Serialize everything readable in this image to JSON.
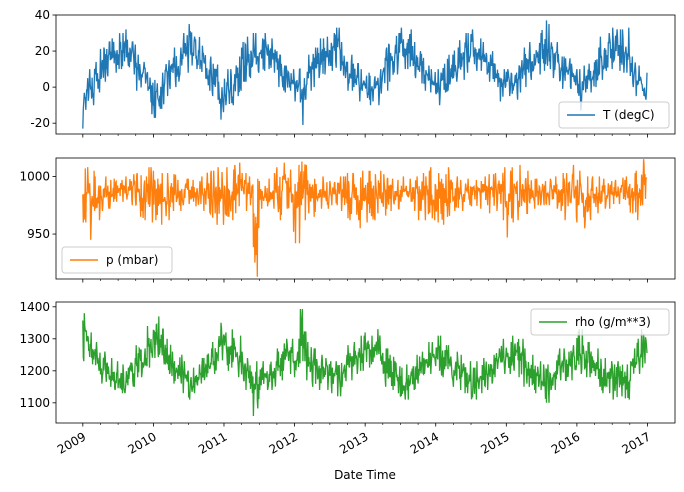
{
  "chart_data": [
    {
      "type": "line",
      "series": [
        {
          "name": "T (degC)",
          "color": "#1f77b4"
        }
      ],
      "x_start": "2009-01",
      "x_end": "2016-12",
      "monthly_low_high": [
        [
          -23,
          5
        ],
        [
          -10,
          10
        ],
        [
          -3,
          14
        ],
        [
          3,
          22
        ],
        [
          6,
          25
        ],
        [
          8,
          27
        ],
        [
          10,
          30
        ],
        [
          11,
          32
        ],
        [
          7,
          25
        ],
        [
          -2,
          18
        ],
        [
          2,
          14
        ],
        [
          -15,
          8
        ],
        [
          -17,
          4
        ],
        [
          -12,
          8
        ],
        [
          -5,
          15
        ],
        [
          0,
          22
        ],
        [
          3,
          22
        ],
        [
          8,
          30
        ],
        [
          12,
          35
        ],
        [
          10,
          28
        ],
        [
          5,
          23
        ],
        [
          -2,
          17
        ],
        [
          -5,
          13
        ],
        [
          -18,
          3
        ],
        [
          -10,
          10
        ],
        [
          -10,
          10
        ],
        [
          -5,
          17
        ],
        [
          3,
          25
        ],
        [
          5,
          28
        ],
        [
          8,
          30
        ],
        [
          9,
          27
        ],
        [
          10,
          30
        ],
        [
          8,
          27
        ],
        [
          0,
          20
        ],
        [
          -3,
          12
        ],
        [
          -2,
          10
        ],
        [
          -8,
          10
        ],
        [
          -21,
          5
        ],
        [
          -2,
          18
        ],
        [
          0,
          22
        ],
        [
          5,
          27
        ],
        [
          7,
          28
        ],
        [
          9,
          30
        ],
        [
          9,
          33
        ],
        [
          5,
          25
        ],
        [
          -2,
          18
        ],
        [
          0,
          13
        ],
        [
          -8,
          10
        ],
        [
          -10,
          8
        ],
        [
          -8,
          6
        ],
        [
          -10,
          10
        ],
        [
          -2,
          22
        ],
        [
          3,
          24
        ],
        [
          7,
          30
        ],
        [
          10,
          33
        ],
        [
          10,
          32
        ],
        [
          5,
          25
        ],
        [
          2,
          20
        ],
        [
          -2,
          12
        ],
        [
          -3,
          10
        ],
        [
          -10,
          10
        ],
        [
          -3,
          13
        ],
        [
          -2,
          18
        ],
        [
          3,
          22
        ],
        [
          4,
          26
        ],
        [
          8,
          30
        ],
        [
          12,
          32
        ],
        [
          9,
          27
        ],
        [
          7,
          25
        ],
        [
          3,
          20
        ],
        [
          0,
          13
        ],
        [
          -8,
          10
        ],
        [
          -5,
          10
        ],
        [
          -7,
          8
        ],
        [
          -3,
          15
        ],
        [
          0,
          22
        ],
        [
          4,
          25
        ],
        [
          7,
          30
        ],
        [
          9,
          37
        ],
        [
          10,
          35
        ],
        [
          5,
          25
        ],
        [
          -1,
          17
        ],
        [
          0,
          16
        ],
        [
          -1,
          13
        ],
        [
          -13,
          10
        ],
        [
          -3,
          12
        ],
        [
          -3,
          13
        ],
        [
          0,
          22
        ],
        [
          4,
          28
        ],
        [
          9,
          30
        ],
        [
          10,
          33
        ],
        [
          9,
          32
        ],
        [
          8,
          33
        ],
        [
          0,
          17
        ],
        [
          -5,
          12
        ],
        [
          -7,
          8
        ]
      ],
      "ylim": [
        -26,
        40
      ],
      "yticks": [
        -20,
        0,
        20,
        40
      ],
      "legend": {
        "label": "T (degC)",
        "placement": "lower right"
      }
    },
    {
      "type": "line",
      "series": [
        {
          "name": "p (mbar)",
          "color": "#ff7f0e"
        }
      ],
      "x_start": "2009-01",
      "x_end": "2016-12",
      "monthly_low_high": [
        [
          960,
          1008
        ],
        [
          945,
          1005
        ],
        [
          962,
          1000
        ],
        [
          970,
          1000
        ],
        [
          972,
          997
        ],
        [
          978,
          998
        ],
        [
          978,
          997
        ],
        [
          980,
          1000
        ],
        [
          975,
          1002
        ],
        [
          965,
          1003
        ],
        [
          962,
          1000
        ],
        [
          960,
          1008
        ],
        [
          962,
          1005
        ],
        [
          958,
          1003
        ],
        [
          962,
          1003
        ],
        [
          970,
          1002
        ],
        [
          970,
          997
        ],
        [
          975,
          998
        ],
        [
          976,
          997
        ],
        [
          974,
          996
        ],
        [
          970,
          1000
        ],
        [
          968,
          1005
        ],
        [
          958,
          1005
        ],
        [
          958,
          1008
        ],
        [
          965,
          1008
        ],
        [
          962,
          1010
        ],
        [
          968,
          1012
        ],
        [
          970,
          1003
        ],
        [
          975,
          1000
        ],
        [
          913,
          998
        ],
        [
          972,
          996
        ],
        [
          974,
          998
        ],
        [
          972,
          1003
        ],
        [
          962,
          1008
        ],
        [
          972,
          1012
        ],
        [
          952,
          1006
        ],
        [
          942,
          1010
        ],
        [
          962,
          1013
        ],
        [
          968,
          1010
        ],
        [
          965,
          998
        ],
        [
          972,
          1000
        ],
        [
          972,
          995
        ],
        [
          975,
          996
        ],
        [
          975,
          1000
        ],
        [
          970,
          1000
        ],
        [
          962,
          1003
        ],
        [
          962,
          1002
        ],
        [
          955,
          1005
        ],
        [
          960,
          1005
        ],
        [
          962,
          1002
        ],
        [
          968,
          1005
        ],
        [
          966,
          1002
        ],
        [
          970,
          998
        ],
        [
          972,
          997
        ],
        [
          978,
          1000
        ],
        [
          978,
          998
        ],
        [
          970,
          1000
        ],
        [
          962,
          1003
        ],
        [
          962,
          1005
        ],
        [
          962,
          1008
        ],
        [
          960,
          1003
        ],
        [
          958,
          1002
        ],
        [
          965,
          1008
        ],
        [
          970,
          1000
        ],
        [
          970,
          997
        ],
        [
          975,
          998
        ],
        [
          974,
          997
        ],
        [
          972,
          996
        ],
        [
          975,
          1000
        ],
        [
          968,
          1002
        ],
        [
          970,
          1003
        ],
        [
          962,
          1008
        ],
        [
          947,
          1005
        ],
        [
          960,
          1008
        ],
        [
          962,
          1010
        ],
        [
          968,
          1005
        ],
        [
          972,
          998
        ],
        [
          975,
          998
        ],
        [
          975,
          996
        ],
        [
          975,
          998
        ],
        [
          972,
          1000
        ],
        [
          970,
          1003
        ],
        [
          962,
          1003
        ],
        [
          965,
          1010
        ],
        [
          960,
          1005
        ],
        [
          955,
          1000
        ],
        [
          962,
          1000
        ],
        [
          968,
          1000
        ],
        [
          972,
          998
        ],
        [
          972,
          996
        ],
        [
          976,
          997
        ],
        [
          976,
          999
        ],
        [
          975,
          1000
        ],
        [
          968,
          1003
        ],
        [
          962,
          1005
        ],
        [
          975,
          1015
        ]
      ],
      "ylim": [
        911,
        1016
      ],
      "yticks": [
        950,
        1000
      ],
      "legend": {
        "label": "p (mbar)",
        "placement": "lower left"
      }
    },
    {
      "type": "line",
      "series": [
        {
          "name": "rho (g/m**3)",
          "color": "#2ca02c"
        }
      ],
      "x_start": "2009-01",
      "x_end": "2016-12",
      "monthly_low_high": [
        [
          1230,
          1380
        ],
        [
          1220,
          1320
        ],
        [
          1200,
          1290
        ],
        [
          1160,
          1260
        ],
        [
          1150,
          1240
        ],
        [
          1140,
          1230
        ],
        [
          1130,
          1220
        ],
        [
          1130,
          1210
        ],
        [
          1150,
          1240
        ],
        [
          1180,
          1280
        ],
        [
          1180,
          1270
        ],
        [
          1210,
          1340
        ],
        [
          1240,
          1370
        ],
        [
          1220,
          1330
        ],
        [
          1190,
          1300
        ],
        [
          1160,
          1260
        ],
        [
          1160,
          1250
        ],
        [
          1130,
          1230
        ],
        [
          1110,
          1210
        ],
        [
          1130,
          1220
        ],
        [
          1160,
          1240
        ],
        [
          1180,
          1270
        ],
        [
          1190,
          1290
        ],
        [
          1230,
          1350
        ],
        [
          1200,
          1320
        ],
        [
          1210,
          1330
        ],
        [
          1180,
          1310
        ],
        [
          1140,
          1260
        ],
        [
          1130,
          1240
        ],
        [
          1059,
          1230
        ],
        [
          1140,
          1230
        ],
        [
          1140,
          1220
        ],
        [
          1140,
          1230
        ],
        [
          1170,
          1270
        ],
        [
          1200,
          1300
        ],
        [
          1190,
          1300
        ],
        [
          1180,
          1300
        ],
        [
          1230,
          1393
        ],
        [
          1170,
          1290
        ],
        [
          1150,
          1270
        ],
        [
          1140,
          1250
        ],
        [
          1140,
          1240
        ],
        [
          1130,
          1230
        ],
        [
          1120,
          1230
        ],
        [
          1150,
          1250
        ],
        [
          1170,
          1280
        ],
        [
          1190,
          1290
        ],
        [
          1200,
          1310
        ],
        [
          1210,
          1320
        ],
        [
          1220,
          1310
        ],
        [
          1220,
          1330
        ],
        [
          1150,
          1270
        ],
        [
          1140,
          1250
        ],
        [
          1130,
          1230
        ],
        [
          1110,
          1210
        ],
        [
          1110,
          1220
        ],
        [
          1140,
          1250
        ],
        [
          1160,
          1260
        ],
        [
          1190,
          1290
        ],
        [
          1190,
          1290
        ],
        [
          1200,
          1310
        ],
        [
          1180,
          1280
        ],
        [
          1170,
          1280
        ],
        [
          1150,
          1260
        ],
        [
          1140,
          1250
        ],
        [
          1130,
          1230
        ],
        [
          1110,
          1210
        ],
        [
          1130,
          1230
        ],
        [
          1140,
          1240
        ],
        [
          1160,
          1250
        ],
        [
          1180,
          1270
        ],
        [
          1190,
          1300
        ],
        [
          1190,
          1290
        ],
        [
          1200,
          1310
        ],
        [
          1180,
          1300
        ],
        [
          1150,
          1270
        ],
        [
          1140,
          1250
        ],
        [
          1130,
          1230
        ],
        [
          1100,
          1220
        ],
        [
          1100,
          1220
        ],
        [
          1140,
          1250
        ],
        [
          1170,
          1270
        ],
        [
          1170,
          1260
        ],
        [
          1170,
          1280
        ],
        [
          1190,
          1330
        ],
        [
          1180,
          1290
        ],
        [
          1180,
          1290
        ],
        [
          1150,
          1270
        ],
        [
          1130,
          1240
        ],
        [
          1130,
          1230
        ],
        [
          1110,
          1220
        ],
        [
          1120,
          1230
        ],
        [
          1110,
          1220
        ],
        [
          1170,
          1270
        ],
        [
          1190,
          1300
        ],
        [
          1210,
          1330
        ]
      ],
      "ylim": [
        1037,
        1415
      ],
      "yticks": [
        1100,
        1200,
        1300,
        1400
      ],
      "legend": {
        "label": "rho (g/m**3)",
        "placement": "upper right"
      }
    }
  ],
  "xaxis": {
    "label": "Date Time",
    "ticks": [
      "2009",
      "2010",
      "2011",
      "2012",
      "2013",
      "2014",
      "2015",
      "2016",
      "2017"
    ],
    "xlim": [
      2008.62,
      2017.39
    ]
  }
}
